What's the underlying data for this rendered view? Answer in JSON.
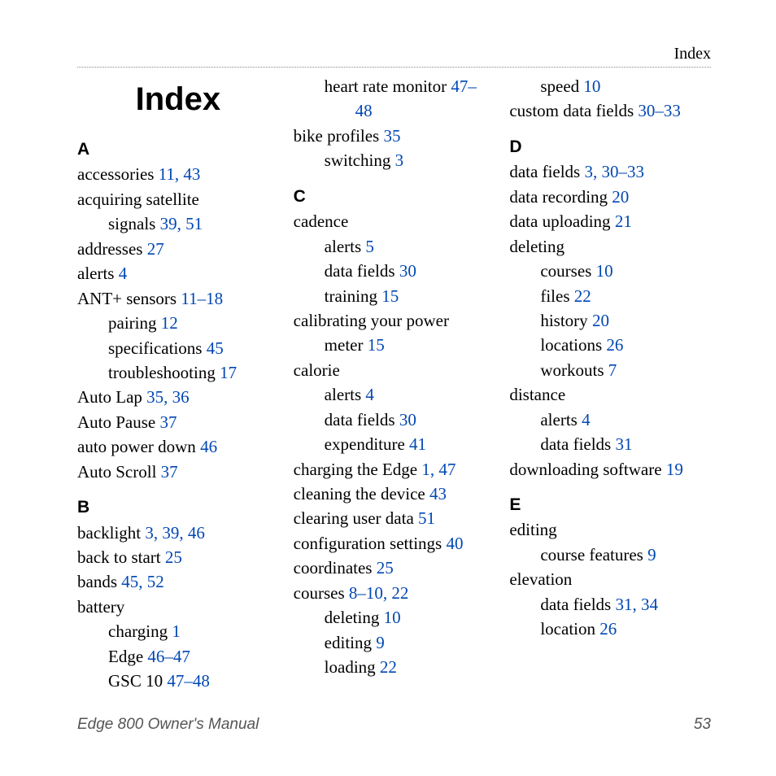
{
  "header": {
    "label": "Index"
  },
  "title": "Index",
  "footer": {
    "manual": "Edge 800 Owner's Manual",
    "page": "53"
  },
  "style": {
    "link_color": "#0047b3",
    "text_color": "#000000",
    "footer_color": "#555555",
    "title_fontsize": 40,
    "body_fontsize": 21,
    "letter_fontsize": 21
  },
  "columns": [
    [
      {
        "type": "title"
      },
      {
        "type": "letter",
        "text": "A"
      },
      {
        "type": "entry",
        "text": "accessories",
        "pages": "11, 43"
      },
      {
        "type": "entry",
        "text": "acquiring satellite"
      },
      {
        "type": "sub",
        "text": "signals",
        "pages": "39, 51"
      },
      {
        "type": "entry",
        "text": "addresses",
        "pages": "27"
      },
      {
        "type": "entry",
        "text": "alerts",
        "pages": "4"
      },
      {
        "type": "entry",
        "text": "ANT+ sensors",
        "pages": "11–18"
      },
      {
        "type": "sub",
        "text": "pairing",
        "pages": "12"
      },
      {
        "type": "sub",
        "text": "specifications",
        "pages": "45"
      },
      {
        "type": "sub",
        "text": "troubleshooting",
        "pages": "17"
      },
      {
        "type": "entry",
        "text": "Auto Lap",
        "pages": "35, 36"
      },
      {
        "type": "entry",
        "text": "Auto Pause",
        "pages": "37"
      },
      {
        "type": "entry",
        "text": "auto power down",
        "pages": "46"
      },
      {
        "type": "entry",
        "text": "Auto Scroll",
        "pages": "37"
      },
      {
        "type": "letter",
        "text": "B"
      },
      {
        "type": "entry",
        "text": "backlight",
        "pages": "3, 39, 46"
      },
      {
        "type": "entry",
        "text": "back to start",
        "pages": "25"
      },
      {
        "type": "entry",
        "text": "bands",
        "pages": "45, 52"
      },
      {
        "type": "entry",
        "text": "battery"
      },
      {
        "type": "sub",
        "text": "charging",
        "pages": "1"
      },
      {
        "type": "sub",
        "text": "Edge",
        "pages": "46–47"
      },
      {
        "type": "sub",
        "text": "GSC 10",
        "pages": "47–48"
      }
    ],
    [
      {
        "type": "sub",
        "text": "heart rate monitor",
        "pages": "47–"
      },
      {
        "type": "subsub",
        "pages": "48"
      },
      {
        "type": "entry",
        "text": "bike profiles",
        "pages": "35"
      },
      {
        "type": "sub",
        "text": "switching",
        "pages": "3"
      },
      {
        "type": "letter",
        "text": "C"
      },
      {
        "type": "entry",
        "text": "cadence"
      },
      {
        "type": "sub",
        "text": "alerts",
        "pages": "5"
      },
      {
        "type": "sub",
        "text": "data fields",
        "pages": "30"
      },
      {
        "type": "sub",
        "text": "training",
        "pages": "15"
      },
      {
        "type": "entry",
        "text": "calibrating your power"
      },
      {
        "type": "sub",
        "text": "meter",
        "pages": "15"
      },
      {
        "type": "entry",
        "text": "calorie"
      },
      {
        "type": "sub",
        "text": "alerts",
        "pages": "4"
      },
      {
        "type": "sub",
        "text": "data fields",
        "pages": "30"
      },
      {
        "type": "sub",
        "text": "expenditure",
        "pages": "41"
      },
      {
        "type": "entry",
        "text": "charging the Edge",
        "pages": "1, 47"
      },
      {
        "type": "entry",
        "text": "cleaning the device",
        "pages": "43"
      },
      {
        "type": "entry",
        "text": "clearing user data",
        "pages": "51"
      },
      {
        "type": "entry",
        "text": "configuration settings",
        "pages": "40"
      },
      {
        "type": "entry",
        "text": "coordinates",
        "pages": "25"
      },
      {
        "type": "entry",
        "text": "courses",
        "pages": "8–10, 22"
      },
      {
        "type": "sub",
        "text": "deleting",
        "pages": "10"
      },
      {
        "type": "sub",
        "text": "editing",
        "pages": "9"
      },
      {
        "type": "sub",
        "text": "loading",
        "pages": "22"
      }
    ],
    [
      {
        "type": "sub",
        "text": "speed",
        "pages": "10"
      },
      {
        "type": "entry",
        "text": "custom data fields",
        "pages": "30–33"
      },
      {
        "type": "letter",
        "text": "D"
      },
      {
        "type": "entry",
        "text": "data fields",
        "pages": "3, 30–33"
      },
      {
        "type": "entry",
        "text": "data recording",
        "pages": "20"
      },
      {
        "type": "entry",
        "text": "data uploading",
        "pages": "21"
      },
      {
        "type": "entry",
        "text": "deleting"
      },
      {
        "type": "sub",
        "text": "courses",
        "pages": "10"
      },
      {
        "type": "sub",
        "text": "files",
        "pages": "22"
      },
      {
        "type": "sub",
        "text": "history",
        "pages": "20"
      },
      {
        "type": "sub",
        "text": "locations",
        "pages": "26"
      },
      {
        "type": "sub",
        "text": "workouts",
        "pages": "7"
      },
      {
        "type": "entry",
        "text": "distance"
      },
      {
        "type": "sub",
        "text": "alerts",
        "pages": "4"
      },
      {
        "type": "sub",
        "text": "data fields",
        "pages": "31"
      },
      {
        "type": "entry",
        "text": "downloading software",
        "pages": "19"
      },
      {
        "type": "letter",
        "text": "E"
      },
      {
        "type": "entry",
        "text": "editing"
      },
      {
        "type": "sub",
        "text": "course features",
        "pages": "9"
      },
      {
        "type": "entry",
        "text": "elevation"
      },
      {
        "type": "sub",
        "text": "data fields",
        "pages": "31, 34"
      },
      {
        "type": "sub",
        "text": "location",
        "pages": "26"
      }
    ]
  ]
}
